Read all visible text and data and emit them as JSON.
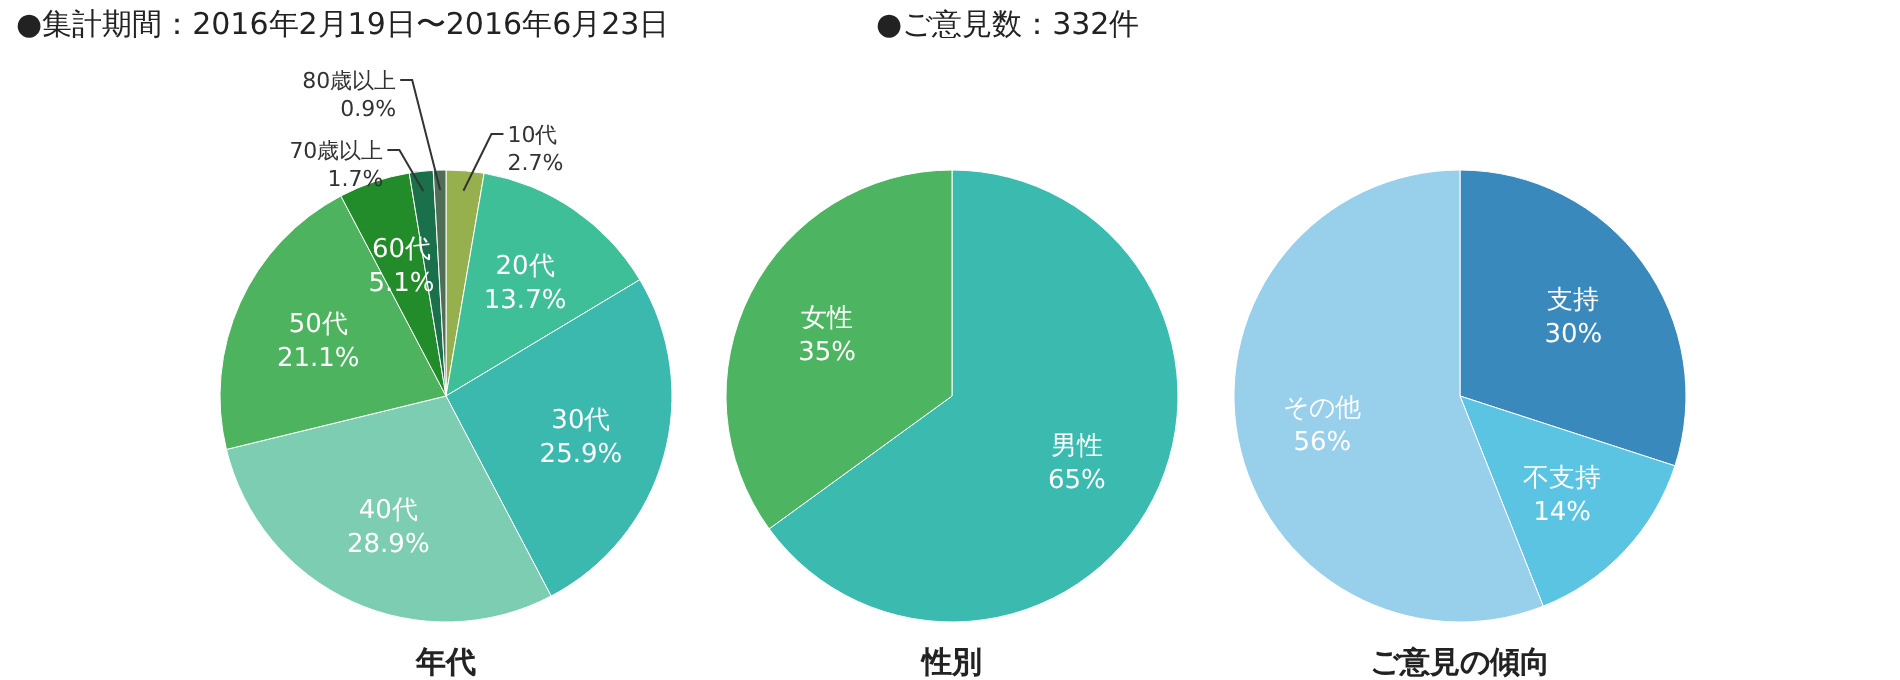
{
  "chart_data": [
    {
      "type": "pie",
      "title": "年代",
      "value_labels": [
        "2.7%",
        "13.7%",
        "25.9%",
        "28.9%",
        "21.1%",
        "5.1%",
        "1.7%",
        "0.9%"
      ],
      "annotations": [
        "●集計期間：2016年2月19日〜2016年6月23日",
        "●ご意見数：332件"
      ],
      "categories": [
        "10代",
        "20代",
        "30代",
        "40代",
        "50代",
        "60代",
        "70歳以上",
        "80歳以上"
      ],
      "values": [
        2.7,
        13.7,
        25.9,
        28.9,
        21.1,
        5.1,
        1.7,
        0.9
      ],
      "colors": [
        "#97b04e",
        "#3ebf98",
        "#3bb9ae",
        "#7dcdb2",
        "#4db35f",
        "#238c2a",
        "#19704a",
        "#4f6e58"
      ]
    },
    {
      "type": "pie",
      "title": "性別",
      "value_labels": [
        "65%",
        "35%"
      ],
      "categories": [
        "男性",
        "女性"
      ],
      "values": [
        65,
        35
      ],
      "colors": [
        "#3bbbb0",
        "#4db562"
      ]
    },
    {
      "type": "pie",
      "title": "ご意見の傾向",
      "value_labels": [
        "30%",
        "14%",
        "56%"
      ],
      "categories": [
        "支持",
        "不支持",
        "その他"
      ],
      "values": [
        30,
        14,
        56
      ],
      "colors": [
        "#3a89bc",
        "#5bc4e3",
        "#98cfeb"
      ]
    }
  ]
}
